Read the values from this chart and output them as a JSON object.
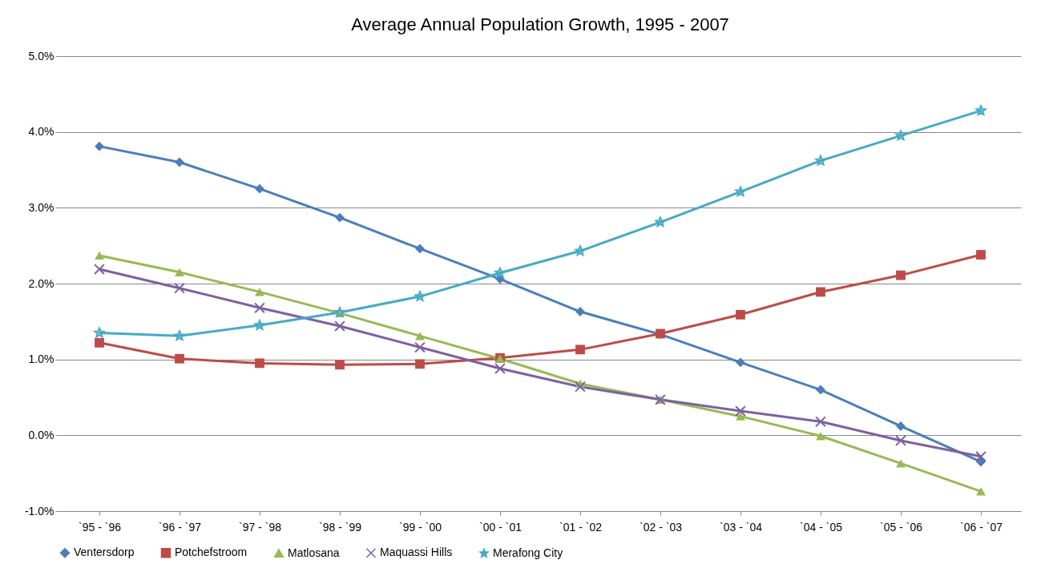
{
  "chart_data": {
    "type": "line",
    "title": "Average Annual Population Growth, 1995 - 2007",
    "categories": [
      "`95 - `96",
      "`96 - `97",
      "`97 - `98",
      "`98 - `99",
      "`99 - `00",
      "`00 - `01",
      "`01 - `02",
      "`02 - `03",
      "`03 - `04",
      "`04 - `05",
      "`05 - `06",
      "`06 - `07"
    ],
    "series": [
      {
        "name": "Ventersdorp",
        "color": "#4a7ebb",
        "marker": "diamond",
        "values": [
          3.81,
          3.6,
          3.25,
          2.87,
          2.46,
          2.06,
          1.63,
          1.33,
          0.96,
          0.6,
          0.12,
          -0.35
        ]
      },
      {
        "name": "Potchefstroom",
        "color": "#be4b48",
        "marker": "square",
        "values": [
          1.22,
          1.01,
          0.95,
          0.93,
          0.94,
          1.02,
          1.13,
          1.34,
          1.59,
          1.89,
          2.11,
          2.38
        ]
      },
      {
        "name": "Matlosana",
        "color": "#98b954",
        "marker": "triangle",
        "values": [
          2.37,
          2.15,
          1.89,
          1.61,
          1.31,
          1.01,
          0.68,
          0.47,
          0.25,
          -0.01,
          -0.37,
          -0.74
        ]
      },
      {
        "name": "Maquassi Hills",
        "color": "#7d60a0",
        "marker": "cross",
        "values": [
          2.19,
          1.94,
          1.68,
          1.44,
          1.16,
          0.88,
          0.64,
          0.47,
          0.32,
          0.18,
          -0.07,
          -0.28
        ]
      },
      {
        "name": "Merafong City",
        "color": "#46aac5",
        "marker": "star",
        "values": [
          1.35,
          1.31,
          1.45,
          1.62,
          1.83,
          2.14,
          2.43,
          2.81,
          3.21,
          3.62,
          3.95,
          4.28
        ]
      }
    ],
    "ylim": [
      -1,
      5
    ],
    "yticks": [
      {
        "value": -1,
        "label": "-1.0%"
      },
      {
        "value": 0,
        "label": "0.0%"
      },
      {
        "value": 1,
        "label": "1.0%"
      },
      {
        "value": 2,
        "label": "2.0%"
      },
      {
        "value": 3,
        "label": "3.0%"
      },
      {
        "value": 4,
        "label": "4.0%"
      },
      {
        "value": 5,
        "label": "5.0%"
      }
    ],
    "grid": "y",
    "legend": "bottom",
    "line_style": "solid"
  }
}
